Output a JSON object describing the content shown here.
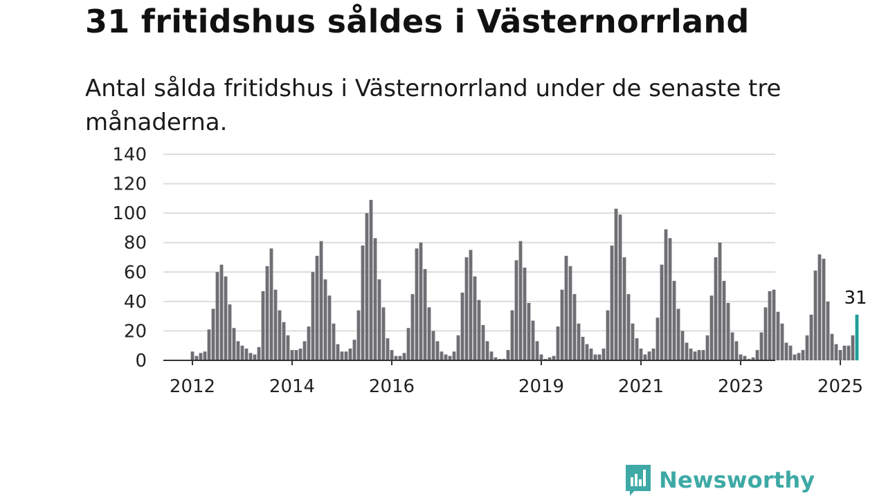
{
  "title": "31 fritidshus såldes i Västernorrland",
  "subtitle": "Antal sålda fritidshus i Västernorrland under de senaste tre månaderna.",
  "brand": {
    "name": "Newsworthy",
    "color": "#3ea9a5",
    "icon": "newsworthy-logo-icon"
  },
  "chart_data": {
    "type": "bar",
    "title": "31 fritidshus såldes i Västernorrland",
    "subtitle": "Antal sålda fritidshus i Västernorrland under de senaste tre månaderna.",
    "xlabel": "",
    "ylabel": "",
    "ylim": [
      0,
      140
    ],
    "yticks": [
      0,
      20,
      40,
      60,
      80,
      100,
      120,
      140
    ],
    "xtick_labels": [
      "2012",
      "2014",
      "2016",
      "2019",
      "2021",
      "2023",
      "2025"
    ],
    "grid": true,
    "bar_color": "#6e6e73",
    "highlight_color": "#1f9e96",
    "start_month": "2012-01",
    "end_month": "2025-05",
    "annotation": {
      "month": "2025-05",
      "text": "31"
    },
    "monthly_values": [
      6,
      3,
      5,
      6,
      21,
      35,
      60,
      65,
      57,
      38,
      22,
      13,
      10,
      8,
      5,
      4,
      9,
      47,
      64,
      76,
      48,
      34,
      26,
      17,
      7,
      7,
      8,
      13,
      23,
      60,
      71,
      81,
      55,
      44,
      25,
      11,
      6,
      6,
      8,
      14,
      34,
      78,
      100,
      109,
      83,
      55,
      36,
      15,
      7,
      3,
      3,
      5,
      22,
      45,
      76,
      80,
      62,
      36,
      20,
      13,
      6,
      4,
      3,
      6,
      17,
      46,
      70,
      75,
      57,
      41,
      24,
      13,
      6,
      2,
      1,
      1,
      7,
      34,
      68,
      81,
      63,
      39,
      27,
      13,
      4,
      1,
      2,
      3,
      23,
      48,
      71,
      64,
      45,
      25,
      16,
      11,
      8,
      4,
      4,
      8,
      34,
      78,
      103,
      99,
      70,
      45,
      25,
      15,
      8,
      4,
      6,
      8,
      29,
      65,
      89,
      83,
      54,
      35,
      20,
      12,
      8,
      6,
      7,
      7,
      17,
      44,
      70,
      80,
      54,
      39,
      19,
      13,
      4,
      3,
      1,
      2,
      7,
      19,
      36,
      47,
      48,
      33,
      25,
      12,
      10,
      4,
      5,
      7,
      17,
      31,
      61,
      72,
      69,
      40,
      18,
      11,
      7,
      10,
      10,
      17,
      31
    ]
  }
}
